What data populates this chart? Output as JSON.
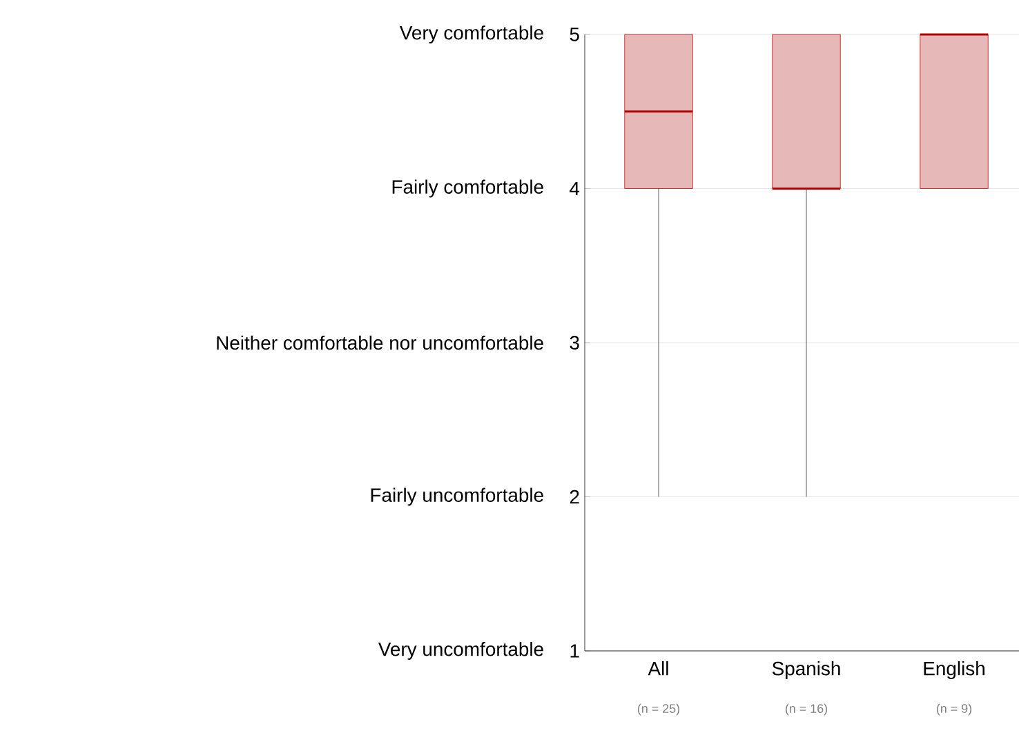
{
  "chart_data": {
    "type": "box",
    "categories": [
      "All",
      "Spanish",
      "English"
    ],
    "boxes": [
      {
        "low": 2,
        "q1": 4,
        "median": 4.5,
        "q3": 5,
        "high": 5
      },
      {
        "low": 2,
        "q1": 4,
        "median": 4,
        "q3": 5,
        "high": 5
      },
      {
        "low": 4,
        "q1": 4,
        "median": 5,
        "q3": 5,
        "high": 5
      }
    ],
    "color": "#e6b8b8",
    "ylim": [
      1,
      5
    ],
    "yticks": [
      1,
      2,
      3,
      4,
      5
    ],
    "grid": "y",
    "annotations": [
      "(n = 25)",
      "(n = 16)",
      "(n = 9)",
      "Very uncomfortable",
      "Fairly uncomfortable",
      "Neither comfortable nor uncomfortable",
      "Fairly comfortable",
      "Very comfortable"
    ]
  }
}
